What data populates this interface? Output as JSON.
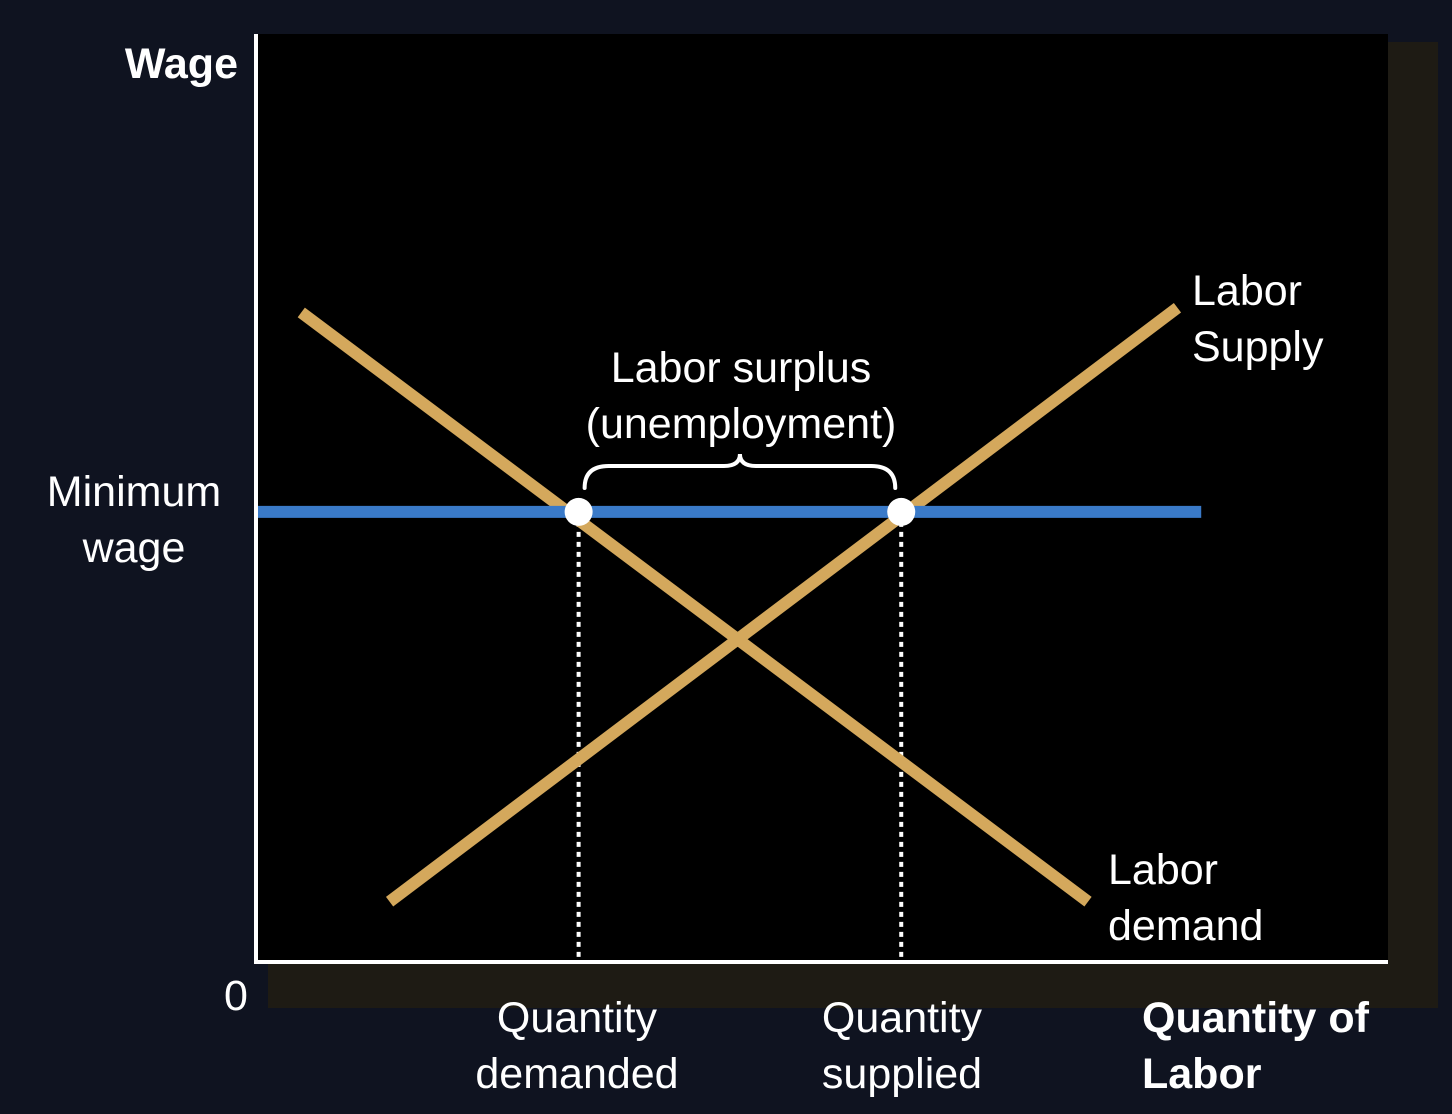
{
  "chart_data": {
    "type": "line",
    "title": "",
    "ylabel": "Wage",
    "xlabel": [
      "Quantity of",
      "Labor"
    ],
    "origin_label": "0",
    "xlim": [
      0,
      100
    ],
    "ylim": [
      0,
      100
    ],
    "series": [
      {
        "name": "Labor demand",
        "label_lines": [
          "Labor",
          "demand"
        ],
        "color": "#d4a85c",
        "points": [
          [
            4,
            70
          ],
          [
            73.5,
            6.5
          ]
        ]
      },
      {
        "name": "Labor Supply",
        "label_lines": [
          "Labor",
          "Supply"
        ],
        "color": "#d4a85c",
        "points": [
          [
            11.8,
            6.5
          ],
          [
            81.4,
            70.5
          ]
        ]
      },
      {
        "name": "Minimum wage",
        "label_lines": [
          "Minimum",
          "wage"
        ],
        "color": "#3a7ac8",
        "points": [
          [
            0,
            48.5
          ],
          [
            83.5,
            48.5
          ]
        ]
      }
    ],
    "intersections": [
      {
        "name": "Quantity demanded",
        "x": 28.5,
        "y": 48.5,
        "label_lines": [
          "Quantity",
          "demanded"
        ]
      },
      {
        "name": "Quantity supplied",
        "x": 57,
        "y": 48.5,
        "label_lines": [
          "Quantity",
          "supplied"
        ]
      }
    ],
    "surplus_annotation": [
      "Labor surplus",
      "(unemployment)"
    ],
    "colors": {
      "background": "#000000",
      "frame": "#0f1320",
      "axes": "#ffffff",
      "points": "#ffffff"
    }
  }
}
